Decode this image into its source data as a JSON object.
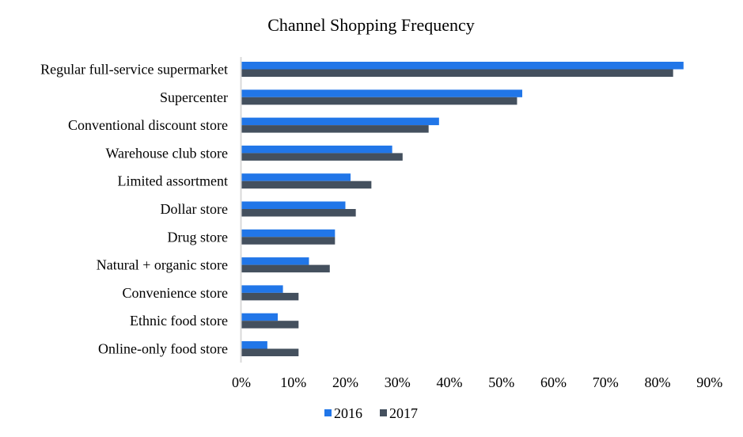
{
  "chart_data": {
    "type": "bar",
    "orientation": "horizontal",
    "title": "Channel Shopping Frequency",
    "xlabel": "",
    "ylabel": "",
    "categories": [
      "Regular full-service supermarket",
      "Supercenter",
      "Conventional discount store",
      "Warehouse club store",
      "Limited assortment",
      "Dollar store",
      "Drug store",
      "Natural + organic store",
      "Convenience store",
      "Ethnic food store",
      "Online-only food store"
    ],
    "series": [
      {
        "name": "2016",
        "color": "#2176e8",
        "values": [
          85,
          54,
          38,
          29,
          21,
          20,
          18,
          13,
          8,
          7,
          5
        ]
      },
      {
        "name": "2017",
        "color": "#44505e",
        "values": [
          83,
          53,
          36,
          31,
          25,
          22,
          18,
          17,
          11,
          11,
          11
        ]
      }
    ],
    "xlim": [
      0,
      90
    ],
    "x_ticks": [
      0,
      10,
      20,
      30,
      40,
      50,
      60,
      70,
      80,
      90
    ],
    "x_tick_labels": [
      "0%",
      "10%",
      "20%",
      "30%",
      "40%",
      "50%",
      "60%",
      "70%",
      "80%",
      "90%"
    ],
    "value_unit": "percent",
    "grid": false,
    "legend": {
      "position": "bottom",
      "entries": [
        "2016",
        "2017"
      ]
    }
  }
}
